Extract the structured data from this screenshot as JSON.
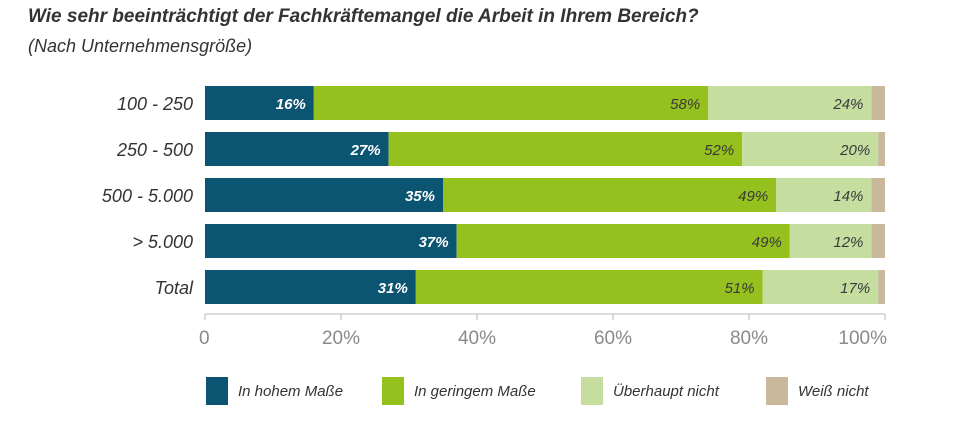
{
  "header": {
    "title": "Wie sehr beeinträchtigt der Fachkräftemangel die Arbeit in Ihrem Bereich?",
    "subtitle": "(Nach Unternehmensgröße)"
  },
  "colors": {
    "in_hohem_masse": "#0b5472",
    "in_geringem_masse": "#95c11f",
    "ueberhaupt_nicht": "#c5dea0",
    "weiss_nicht": "#c9b89c"
  },
  "chart_data": {
    "type": "bar",
    "orientation": "horizontal",
    "stacked": true,
    "categories": [
      "100 - 250",
      "250 - 500",
      "500 - 5.000",
      "> 5.000",
      "Total"
    ],
    "series": [
      {
        "name": "In hohem Maße",
        "values": [
          16,
          27,
          35,
          37,
          31
        ],
        "labels": [
          "16%",
          "27%",
          "35%",
          "37%",
          "31%"
        ],
        "color": "#0b5472"
      },
      {
        "name": "In geringem Maße",
        "values": [
          58,
          52,
          49,
          49,
          51
        ],
        "labels": [
          "58%",
          "52%",
          "49%",
          "49%",
          "51%"
        ],
        "color": "#95c11f"
      },
      {
        "name": "Überhaupt nicht",
        "values": [
          24,
          20,
          14,
          12,
          17
        ],
        "labels": [
          "24%",
          "20%",
          "14%",
          "12%",
          "17%"
        ],
        "color": "#c5dea0"
      },
      {
        "name": "Weiß nicht",
        "values": [
          2,
          1,
          2,
          2,
          1
        ],
        "color": "#c9b89c"
      }
    ],
    "xlim": [
      0,
      100
    ],
    "xticks": [
      0,
      20,
      40,
      60,
      80,
      100
    ],
    "xtick_labels": [
      "0",
      "20%",
      "40%",
      "60%",
      "80%",
      "100%"
    ],
    "grid": false,
    "legend_position": "bottom"
  }
}
